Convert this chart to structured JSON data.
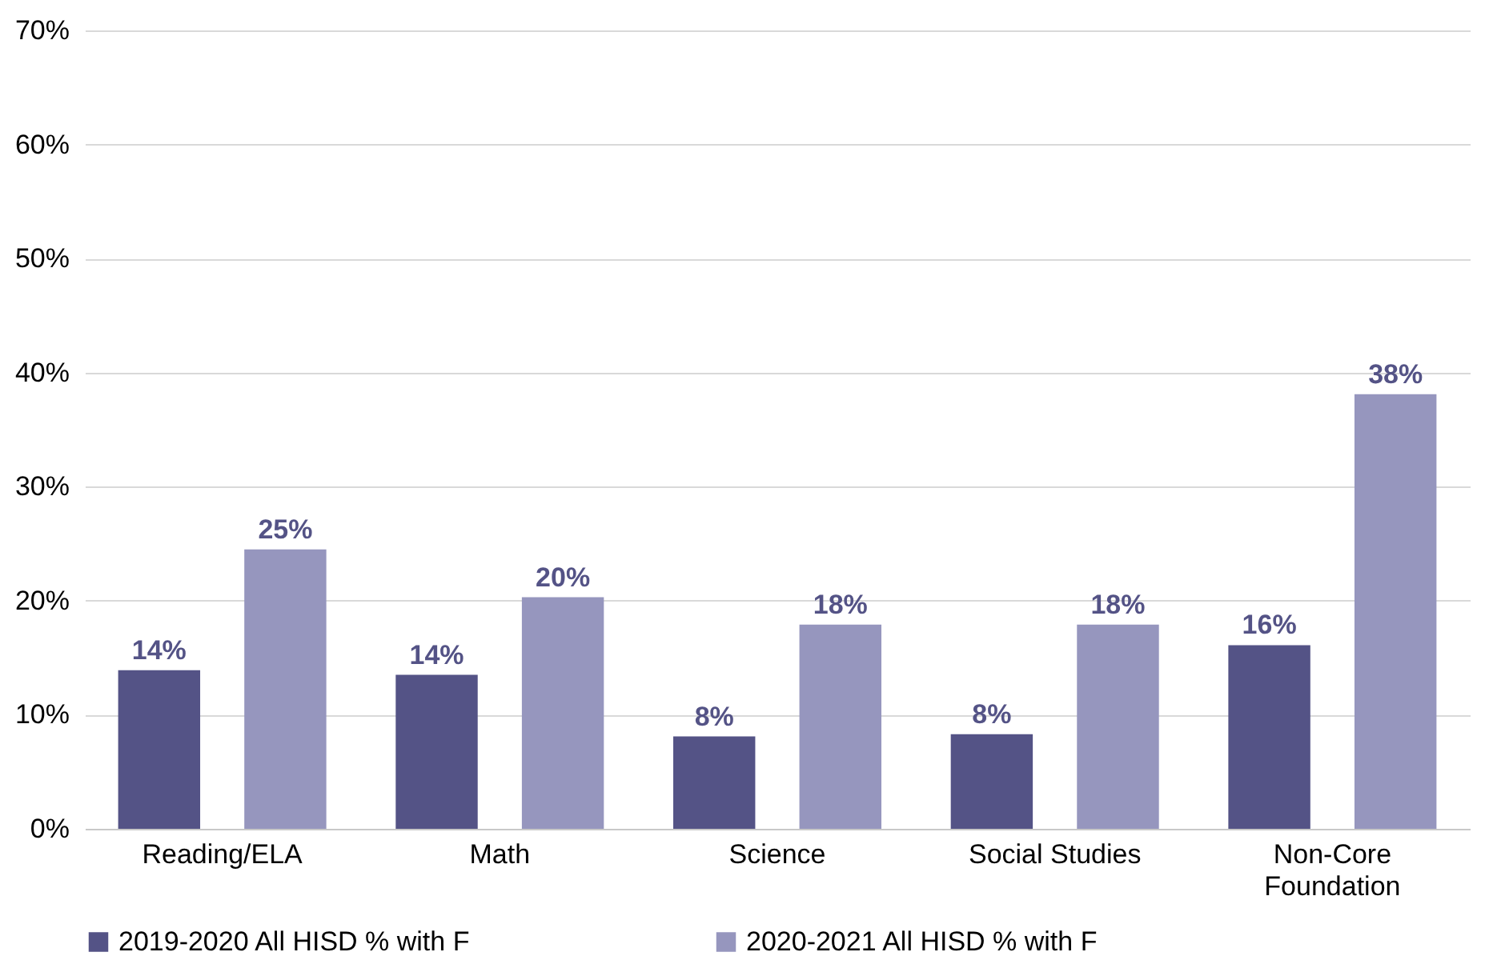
{
  "chart_data": {
    "type": "bar",
    "categories": [
      "Reading/ELA",
      "Math",
      "Science",
      "Social Studies",
      "Non-Core Foundation"
    ],
    "series": [
      {
        "name": "2019-2020 All HISD % with F",
        "color": "#545386",
        "values": [
          13.9,
          13.5,
          8.1,
          8.3,
          16.1
        ],
        "value_labels": [
          "14%",
          "14%",
          "8%",
          "8%",
          "16%"
        ]
      },
      {
        "name": "2020-2021 All HISD % with F",
        "color": "#9696be",
        "values": [
          24.5,
          20.3,
          17.9,
          17.9,
          38.1
        ],
        "value_labels": [
          "25%",
          "20%",
          "18%",
          "18%",
          "38%"
        ]
      }
    ],
    "ylim": [
      0,
      70
    ],
    "yticks": [
      {
        "value": 0,
        "label": "0%"
      },
      {
        "value": 10,
        "label": "10%"
      },
      {
        "value": 20,
        "label": "20%"
      },
      {
        "value": 30,
        "label": "30%"
      },
      {
        "value": 40,
        "label": "40%"
      },
      {
        "value": 50,
        "label": "50%"
      },
      {
        "value": 60,
        "label": "60%"
      },
      {
        "value": 70,
        "label": "70%"
      }
    ],
    "grid": "y",
    "legend": "bottom"
  }
}
